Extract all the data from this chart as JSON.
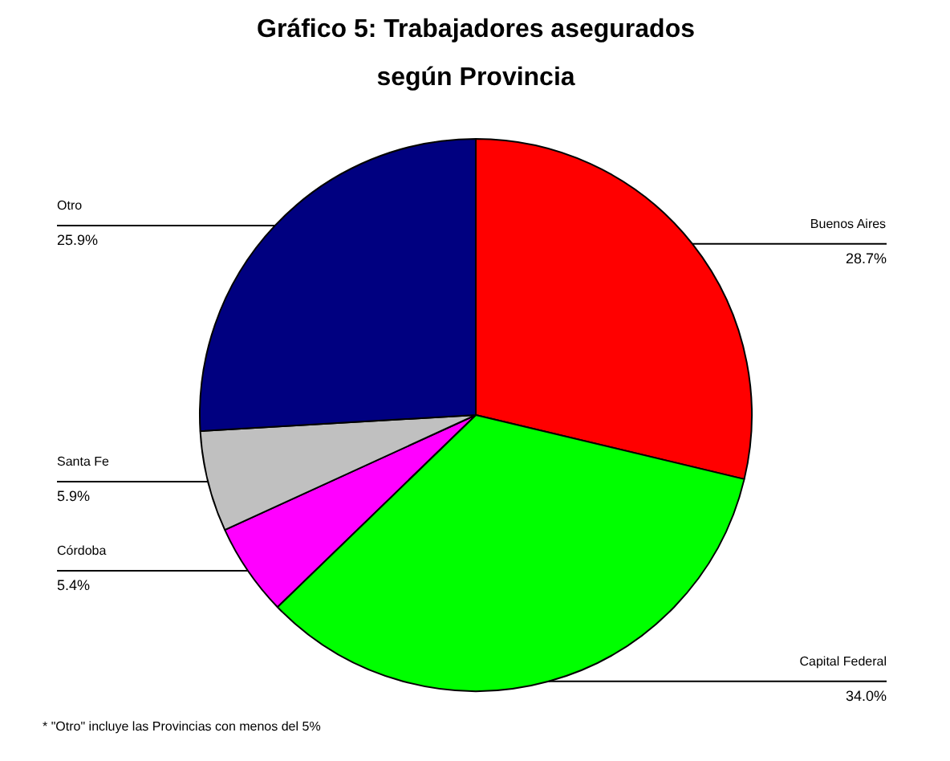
{
  "chart_data": {
    "type": "pie",
    "title": "Gráfico 5: Trabajadores asegurados\nsegún Provincia",
    "categories": [
      "Buenos Aires",
      "Capital Federal",
      "Córdoba",
      "Santa Fe",
      "Otro"
    ],
    "values": [
      28.7,
      34.0,
      5.4,
      5.9,
      25.9
    ],
    "value_labels": [
      "28.7%",
      "34.0%",
      "5.4%",
      "5.9%",
      "25.9%"
    ],
    "colors": [
      "#ff0000",
      "#00ff00",
      "#ff00ff",
      "#c0c0c0",
      "#000080"
    ],
    "annotations": [
      "* \"Otro\" incluye las Provincias con menos del 5%"
    ]
  }
}
